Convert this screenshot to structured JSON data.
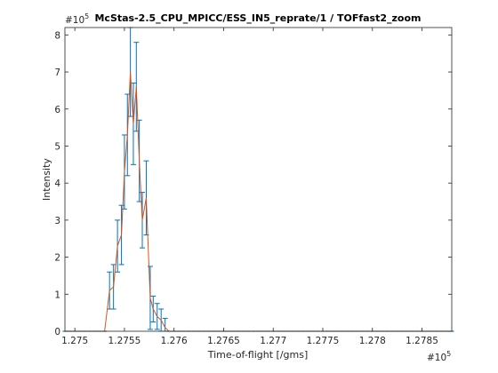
{
  "chart_data": {
    "type": "line",
    "title": "McStas-2.5_CPU_MPICC/ESS_IN5_reprate/1 / TOFfast2_zoom",
    "xlabel": "Time-of-flight [/gms]",
    "ylabel": "Intensity",
    "x_exponent_label": "#10",
    "x_exponent_power": "5",
    "y_exponent_label": "#10",
    "y_exponent_power": "5",
    "xlim": [
      1.2749,
      1.2788
    ],
    "ylim": [
      0,
      8.2
    ],
    "xticks": [
      1.275,
      1.2755,
      1.276,
      1.2765,
      1.277,
      1.2775,
      1.278,
      1.2785
    ],
    "xtick_labels": [
      "1.275",
      "1.2755",
      "1.276",
      "1.2765",
      "1.277",
      "1.2775",
      "1.278",
      "1.2785"
    ],
    "yticks": [
      0,
      1,
      2,
      3,
      4,
      5,
      6,
      7,
      8
    ],
    "ytick_labels": [
      "0",
      "1",
      "2",
      "3",
      "4",
      "5",
      "6",
      "7",
      "8"
    ],
    "grid": false,
    "colors": {
      "line": "#d95319",
      "errorbar": "#0072bd",
      "axes": "#262626"
    },
    "x": [
      1.2749,
      1.27495,
      1.275,
      1.27505,
      1.2751,
      1.27515,
      1.2752,
      1.27525,
      1.2753,
      1.27535,
      1.27539,
      1.27543,
      1.27547,
      1.2755,
      1.27553,
      1.27556,
      1.27559,
      1.27562,
      1.27565,
      1.27568,
      1.27572,
      1.27576,
      1.27579,
      1.27583,
      1.27587,
      1.27591,
      1.27595,
      1.276,
      1.27605,
      1.2761,
      1.27615,
      1.2762,
      1.27625,
      1.2763,
      1.27635,
      1.2764,
      1.27645,
      1.2765,
      1.27655,
      1.2766,
      1.27665,
      1.2767,
      1.27675,
      1.2768,
      1.27685,
      1.2769,
      1.27695,
      1.277,
      1.27705,
      1.2771,
      1.27715,
      1.2772,
      1.27725,
      1.2773,
      1.27735,
      1.2774,
      1.27745,
      1.2775,
      1.27755,
      1.2776,
      1.27765,
      1.2777,
      1.27775,
      1.2778,
      1.27785,
      1.2779,
      1.27795,
      1.278,
      1.27805,
      1.2781,
      1.27815,
      1.2782,
      1.27825,
      1.2783,
      1.27835,
      1.2784,
      1.27845,
      1.2785,
      1.27855,
      1.2786,
      1.27865,
      1.2787,
      1.27875,
      1.2788
    ],
    "y": [
      0,
      0,
      0,
      0,
      0,
      0,
      0,
      0,
      0,
      1.1,
      1.2,
      2.3,
      2.6,
      4.3,
      5.3,
      7.0,
      5.6,
      6.6,
      4.6,
      3.0,
      3.6,
      0.9,
      0.6,
      0.4,
      0.3,
      0.1,
      0,
      0,
      0,
      0,
      0,
      0,
      0,
      0,
      0,
      0,
      0,
      0,
      0,
      0,
      0,
      0,
      0,
      0,
      0,
      0,
      0,
      0,
      0,
      0,
      0,
      0,
      0,
      0,
      0,
      0,
      0,
      0,
      0,
      0,
      0,
      0,
      0,
      0,
      0,
      0,
      0,
      0,
      0,
      0,
      0,
      0,
      0,
      0,
      0,
      0,
      0,
      0,
      0,
      0,
      0,
      0,
      0,
      0
    ],
    "error": [
      0,
      0,
      0,
      0,
      0,
      0,
      0,
      0,
      0,
      0.5,
      0.6,
      0.7,
      0.8,
      1.0,
      1.1,
      1.2,
      1.1,
      1.2,
      1.1,
      0.75,
      1.0,
      0.85,
      0.35,
      0.35,
      0.3,
      0.25,
      0,
      0,
      0,
      0,
      0,
      0,
      0,
      0,
      0,
      0,
      0,
      0,
      0,
      0,
      0,
      0,
      0,
      0,
      0,
      0,
      0,
      0,
      0,
      0,
      0,
      0,
      0,
      0,
      0,
      0,
      0,
      0,
      0,
      0,
      0,
      0,
      0,
      0,
      0,
      0,
      0,
      0,
      0,
      0,
      0,
      0,
      0,
      0,
      0,
      0,
      0,
      0,
      0,
      0,
      0,
      0,
      0,
      0
    ]
  }
}
